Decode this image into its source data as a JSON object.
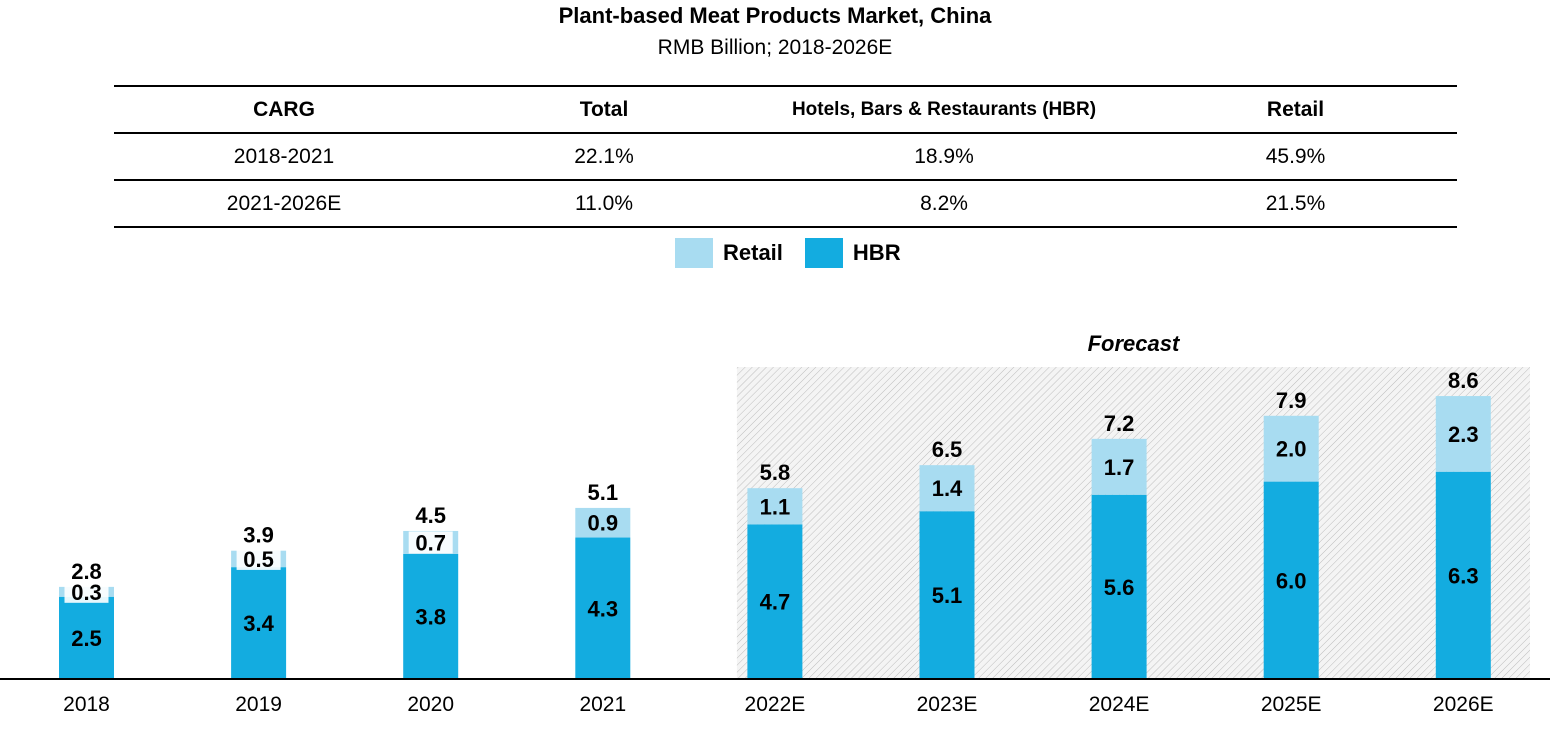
{
  "header": {
    "title": "Plant-based Meat Products Market, China",
    "subtitle": "RMB Billion; 2018-2026E"
  },
  "cagr_table": {
    "headers": [
      "CARG",
      "Total",
      "Hotels, Bars & Restaurants (HBR)",
      "Retail"
    ],
    "rows": [
      [
        "2018-2021",
        "22.1%",
        "18.9%",
        "45.9%"
      ],
      [
        "2021-2026E",
        "11.0%",
        "8.2%",
        "21.5%"
      ]
    ]
  },
  "legend": [
    {
      "label": "Retail",
      "color": "#a8dcf1"
    },
    {
      "label": "HBR",
      "color": "#13ace0"
    }
  ],
  "chart_data": {
    "type": "bar",
    "stacked": true,
    "categories": [
      "2018",
      "2019",
      "2020",
      "2021",
      "2022E",
      "2023E",
      "2024E",
      "2025E",
      "2026E"
    ],
    "series": [
      {
        "name": "HBR",
        "color": "#13ace0",
        "values": [
          2.5,
          3.4,
          3.8,
          4.3,
          4.7,
          5.1,
          5.6,
          6.0,
          6.3
        ]
      },
      {
        "name": "Retail",
        "color": "#a8dcf1",
        "values": [
          0.3,
          0.5,
          0.7,
          0.9,
          1.1,
          1.4,
          1.7,
          2.0,
          2.3
        ]
      }
    ],
    "totals": [
      2.8,
      3.9,
      4.5,
      5.1,
      5.8,
      6.5,
      7.2,
      7.9,
      8.6
    ],
    "forecast_label": "Forecast",
    "forecast_start_index": 4,
    "ylim": [
      0,
      11
    ]
  }
}
